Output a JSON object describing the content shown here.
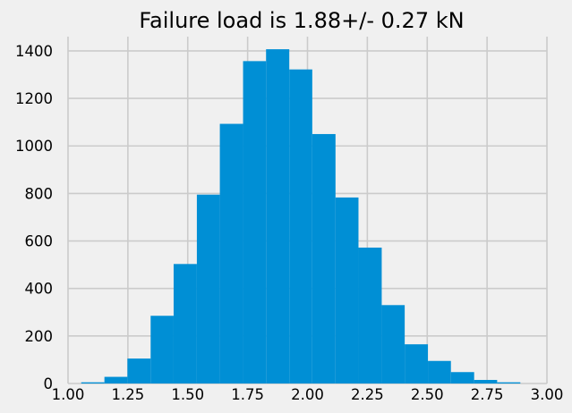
{
  "chart_data": {
    "type": "bar",
    "title": "Failure load is 1.88+/- 0.27 kN",
    "xlabel": "",
    "ylabel": "",
    "xlim": [
      1.0,
      3.0
    ],
    "ylim": [
      0,
      1460
    ],
    "grid": true,
    "color": "#008fd5",
    "background": "#f0f0f0",
    "xticks": [
      1.0,
      1.25,
      1.5,
      1.75,
      2.0,
      2.25,
      2.5,
      2.75,
      3.0
    ],
    "xtick_labels": [
      "1.00",
      "1.25",
      "1.50",
      "1.75",
      "2.00",
      "2.25",
      "2.50",
      "2.75",
      "3.00"
    ],
    "yticks": [
      0,
      200,
      400,
      600,
      800,
      1000,
      1200,
      1400
    ],
    "ytick_labels": [
      "0",
      "200",
      "400",
      "600",
      "800",
      "1000",
      "1200",
      "1400"
    ],
    "bin_edges": [
      1.055,
      1.152,
      1.248,
      1.345,
      1.441,
      1.538,
      1.634,
      1.731,
      1.827,
      1.924,
      2.02,
      2.117,
      2.213,
      2.31,
      2.406,
      2.503,
      2.599,
      2.696,
      2.792,
      2.889
    ],
    "values": [
      5,
      28,
      105,
      285,
      503,
      795,
      1093,
      1357,
      1407,
      1322,
      1050,
      783,
      572,
      330,
      165,
      95,
      48,
      15,
      5
    ]
  }
}
